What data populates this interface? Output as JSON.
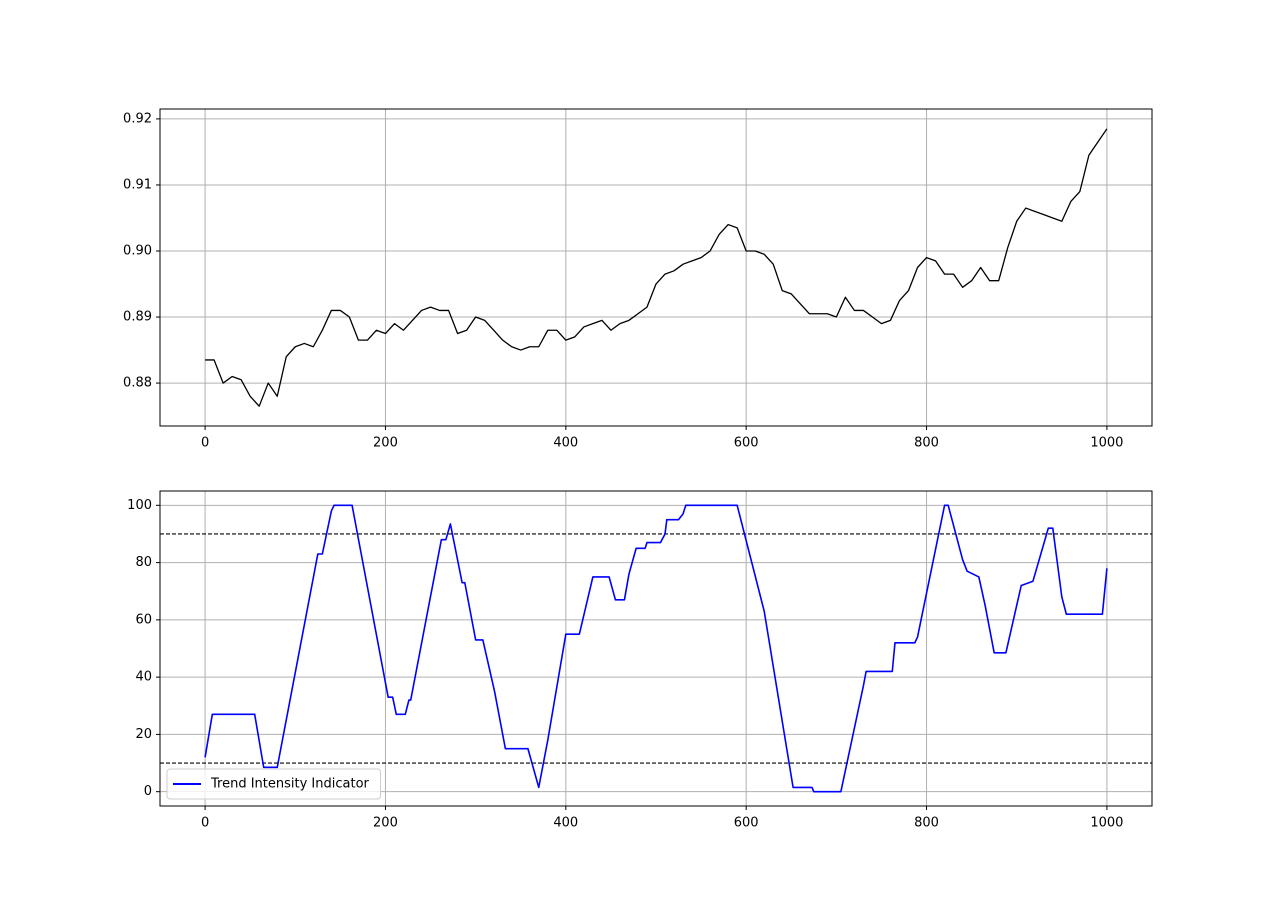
{
  "chart_data": [
    {
      "type": "line",
      "color": "#000000",
      "grid": true,
      "xlim": [
        -50,
        1050
      ],
      "xticks": [
        0,
        200,
        400,
        600,
        800,
        1000
      ],
      "ylim": [
        0.8735,
        0.9215
      ],
      "yticks": [
        0.88,
        0.89,
        {
          "value": 0.9,
          "label": "0.90"
        },
        0.91,
        0.92
      ],
      "x": [
        0,
        10,
        20,
        30,
        40,
        50,
        60,
        70,
        80,
        90,
        100,
        110,
        120,
        130,
        140,
        150,
        160,
        170,
        180,
        190,
        200,
        210,
        220,
        230,
        240,
        250,
        260,
        270,
        280,
        290,
        300,
        310,
        320,
        330,
        340,
        350,
        360,
        370,
        380,
        390,
        400,
        410,
        420,
        430,
        440,
        450,
        460,
        470,
        480,
        490,
        500,
        510,
        520,
        530,
        540,
        550,
        560,
        570,
        580,
        590,
        600,
        610,
        620,
        630,
        640,
        650,
        660,
        670,
        680,
        690,
        700,
        710,
        720,
        730,
        740,
        750,
        760,
        770,
        780,
        790,
        800,
        810,
        820,
        830,
        840,
        850,
        860,
        870,
        880,
        890,
        900,
        910,
        920,
        930,
        940,
        950,
        960,
        970,
        980,
        990,
        1000
      ],
      "values": [
        0.8835,
        0.8835,
        0.88,
        0.881,
        0.8805,
        0.878,
        0.8765,
        0.88,
        0.878,
        0.884,
        0.8855,
        0.886,
        0.8855,
        0.888,
        0.891,
        0.891,
        0.89,
        0.8865,
        0.8865,
        0.888,
        0.8875,
        0.889,
        0.888,
        0.8895,
        0.891,
        0.8915,
        0.891,
        0.891,
        0.8875,
        0.888,
        0.89,
        0.8895,
        0.888,
        0.8865,
        0.8855,
        0.885,
        0.8855,
        0.8855,
        0.888,
        0.888,
        0.8865,
        0.887,
        0.8885,
        0.889,
        0.8895,
        0.888,
        0.889,
        0.8895,
        0.8905,
        0.8915,
        0.895,
        0.8965,
        0.897,
        0.898,
        0.8985,
        0.899,
        0.9,
        0.9025,
        0.904,
        0.9035,
        0.9,
        0.9,
        0.8995,
        0.898,
        0.894,
        0.8935,
        0.892,
        0.8905,
        0.8905,
        0.8905,
        0.89,
        0.893,
        0.891,
        0.891,
        0.89,
        0.889,
        0.8895,
        0.8925,
        0.894,
        0.8975,
        0.899,
        0.8985,
        0.8965,
        0.8965,
        0.8945,
        0.8955,
        0.8975,
        0.8955,
        0.8955,
        0.9005,
        0.9045,
        0.9065,
        0.906,
        0.9055,
        0.905,
        0.9045,
        0.9075,
        0.909,
        0.9145,
        0.9165,
        0.9185
      ]
    },
    {
      "type": "line",
      "grid": true,
      "legend": "lower left",
      "xlim": [
        -50,
        1050
      ],
      "xticks": [
        0,
        200,
        400,
        600,
        800,
        1000
      ],
      "ylim": [
        -5,
        105
      ],
      "yticks": [
        0,
        20,
        40,
        60,
        80,
        100
      ],
      "hlines": [
        10,
        90
      ],
      "hline_color": "#000000",
      "hline_style": "dashed",
      "x": [
        0,
        8,
        55,
        65,
        80,
        125,
        130,
        140,
        143,
        163,
        203,
        208,
        212,
        222,
        226,
        228,
        262,
        267,
        272,
        285,
        288,
        300,
        308,
        321,
        333,
        358,
        370,
        380,
        400,
        415,
        430,
        448,
        455,
        465,
        470,
        478,
        488,
        490,
        505,
        510,
        512,
        525,
        530,
        533,
        590,
        620,
        652,
        673,
        675,
        705,
        730,
        733,
        762,
        765,
        787,
        790,
        820,
        824,
        840,
        845,
        858,
        865,
        875,
        888,
        905,
        918,
        935,
        940,
        950,
        955,
        995,
        1000
      ],
      "series": [
        {
          "name": "Trend Intensity Indicator",
          "color": "#0000ff",
          "values": [
            12,
            27,
            27,
            8.5,
            8.5,
            83,
            83,
            98,
            100,
            100,
            33,
            33,
            27,
            27,
            32,
            32,
            88,
            88,
            93.5,
            73,
            73,
            53,
            53,
            35,
            15,
            15,
            1.5,
            18,
            55,
            55,
            75,
            75,
            67,
            67,
            76,
            85,
            85,
            87,
            87,
            90,
            95,
            95,
            97,
            100,
            100,
            63,
            1.5,
            1.5,
            0,
            0,
            37,
            42,
            42,
            52,
            52,
            54,
            100,
            100,
            81,
            77,
            75,
            65,
            48.5,
            48.5,
            72,
            73.5,
            92,
            92,
            68,
            62,
            62,
            78
          ]
        }
      ]
    }
  ]
}
